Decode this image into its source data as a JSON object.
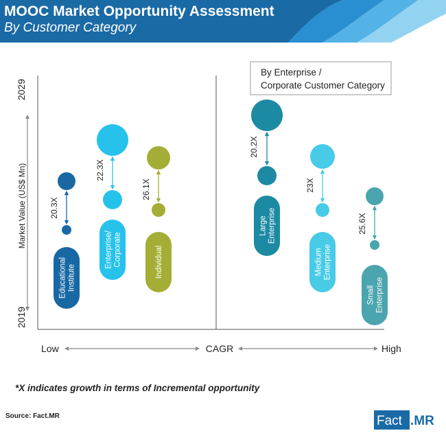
{
  "title": "MOOC Market Opportunity Assessment",
  "subtitle": "By Customer Category",
  "footnote": "*X indicates growth in terms of Incremental opportunity",
  "source": "Source: Fact.MR",
  "logo": {
    "left": "Fact",
    "right": ".MR"
  },
  "colors": {
    "header": "#1a6aa6",
    "educational": "#1868a4",
    "enterprise": "#27c2ec",
    "individual": "#a4ad35",
    "large": "#1d8aa3",
    "medium": "#47cbe6",
    "small": "#4aa5ae"
  },
  "chart_data": {
    "type": "bubble",
    "y_axis": {
      "label": "Market Value (US$ Mn)",
      "bottom": "2019",
      "top": "2029"
    },
    "x_axis": {
      "label": "CAGR",
      "left": "Low",
      "right": "High"
    },
    "legend_box": "By Enterprise / Corporate Customer Category",
    "series": [
      {
        "name": "Educational Institute",
        "lines": [
          "Educational",
          "Institute"
        ],
        "growth": "20.3X",
        "color": "#1868a4"
      },
      {
        "name": "Enterprise/ Corporate",
        "lines": [
          "Enterprise/",
          "Corporate"
        ],
        "growth": "22.3X",
        "color": "#27c2ec"
      },
      {
        "name": "Individual",
        "lines": [
          "Individual"
        ],
        "growth": "26.1X",
        "color": "#a4ad35"
      },
      {
        "name": "Large Enterprise",
        "lines": [
          "Large",
          "Enterprise"
        ],
        "growth": "20.2X",
        "color": "#1d8aa3"
      },
      {
        "name": "Medium Enterprise",
        "lines": [
          "Medium",
          "Enterprise"
        ],
        "growth": "23X",
        "color": "#47cbe6"
      },
      {
        "name": "Small Enterprise",
        "lines": [
          "Small",
          "Enterprise"
        ],
        "growth": "25.6X",
        "color": "#4aa5ae"
      }
    ]
  }
}
